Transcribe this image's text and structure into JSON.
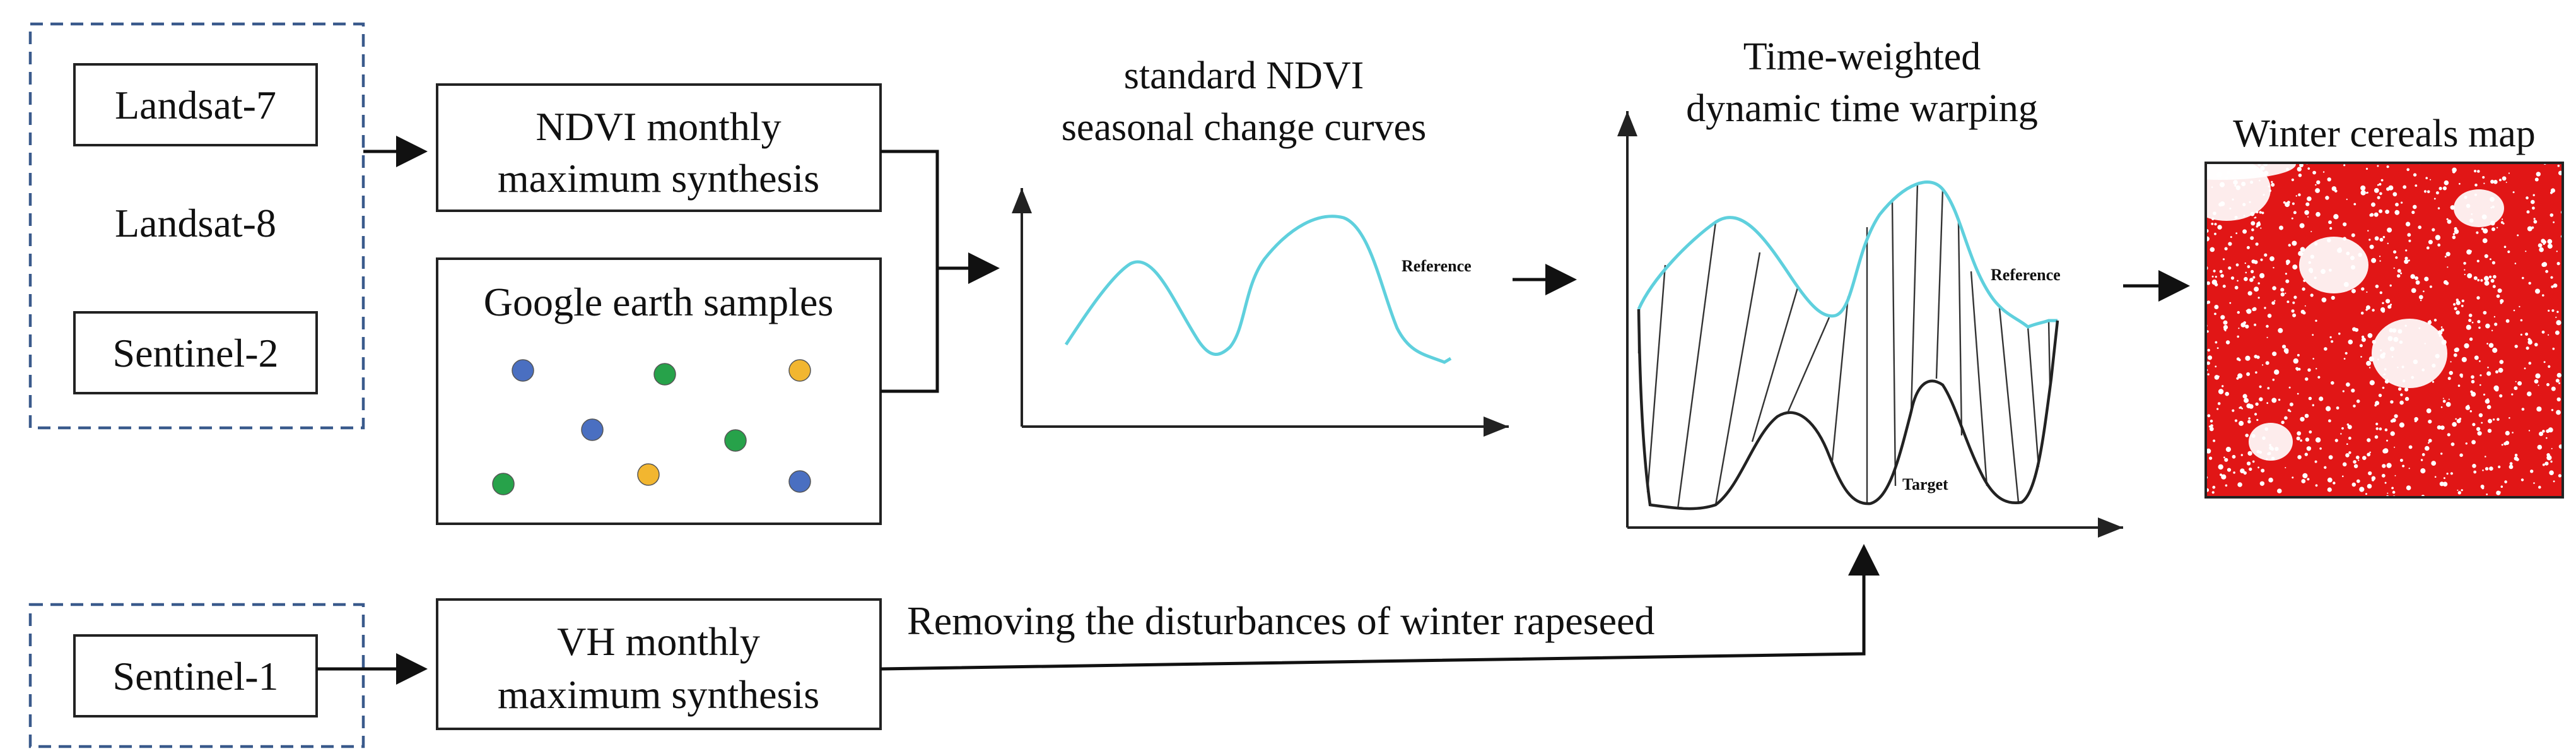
{
  "sources": {
    "landsat7": "Landsat-7",
    "landsat8": "Landsat-8",
    "sentinel2": "Sentinel-2",
    "sentinel1": "Sentinel-1"
  },
  "steps": {
    "ndvi_line1": "NDVI monthly",
    "ndvi_line2": "maximum synthesis",
    "google_samples": "Google earth samples",
    "vh_line1": "VH monthly",
    "vh_line2": "maximum synthesis",
    "removing_note": "Removing the disturbances of winter rapeseed"
  },
  "curves_panel": {
    "title_line1": "standard NDVI",
    "title_line2": "seasonal change curves",
    "reference_label": "Reference"
  },
  "twdtw_panel": {
    "title_line1": "Time-weighted",
    "title_line2": "dynamic time warping",
    "reference_label": "Reference",
    "target_label": "Target"
  },
  "map_panel": {
    "title": "Winter cereals map"
  },
  "colors": {
    "dashed_border": "#3a5a8c",
    "reference_curve": "#5fd0dd",
    "target_curve": "#222222",
    "sample_blue": "#4a6fc1",
    "sample_green": "#27a24a",
    "sample_yellow": "#f2b630",
    "map_red": "#e11616"
  },
  "sample_points": [
    {
      "class": "blue"
    },
    {
      "class": "green"
    },
    {
      "class": "yellow"
    },
    {
      "class": "blue"
    },
    {
      "class": "green"
    },
    {
      "class": "green"
    },
    {
      "class": "yellow"
    },
    {
      "class": "blue"
    }
  ]
}
